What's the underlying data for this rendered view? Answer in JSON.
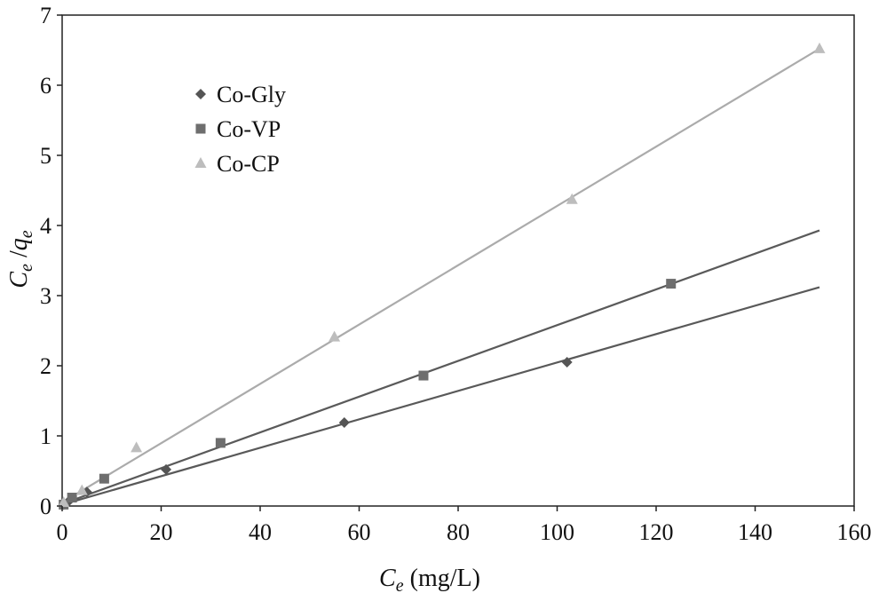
{
  "chart_data": {
    "type": "scatter",
    "xlabel": {
      "var": "C",
      "sub": "e",
      "unit": " (mg/L)"
    },
    "ylabel": {
      "num": "C",
      "num_sub": "e",
      "sep": " /",
      "den": "q",
      "den_sub": "e"
    },
    "xlim": [
      0,
      160
    ],
    "ylim": [
      0,
      7
    ],
    "xticks": [
      0,
      20,
      40,
      60,
      80,
      100,
      120,
      140,
      160
    ],
    "yticks": [
      0,
      1,
      2,
      3,
      4,
      5,
      6,
      7
    ],
    "grid": false,
    "legend_position": "upper-left",
    "series": [
      {
        "name": "Co-Gly",
        "marker": "diamond",
        "marker_color": "#555555",
        "line_color": "#595959",
        "x": [
          0.3,
          1.5,
          5,
          21,
          57,
          102
        ],
        "y": [
          0.02,
          0.08,
          0.2,
          0.52,
          1.19,
          2.05
        ],
        "fit_x": [
          0,
          153
        ],
        "fit_y": [
          0.02,
          3.12
        ]
      },
      {
        "name": "Co-VP",
        "marker": "square",
        "marker_color": "#6e6e6e",
        "line_color": "#5a5a5a",
        "x": [
          0.3,
          2,
          8.5,
          32,
          73,
          123
        ],
        "y": [
          0.02,
          0.12,
          0.39,
          0.9,
          1.86,
          3.17
        ],
        "fit_x": [
          0,
          153
        ],
        "fit_y": [
          0.03,
          3.93
        ]
      },
      {
        "name": "Co-CP",
        "marker": "triangle",
        "marker_color": "#bdbdbd",
        "line_color": "#ababab",
        "x": [
          0.3,
          4,
          15,
          55,
          103,
          153
        ],
        "y": [
          0.05,
          0.22,
          0.83,
          2.41,
          4.37,
          6.52
        ],
        "fit_x": [
          0,
          153
        ],
        "fit_y": [
          0.05,
          6.52
        ]
      }
    ]
  }
}
